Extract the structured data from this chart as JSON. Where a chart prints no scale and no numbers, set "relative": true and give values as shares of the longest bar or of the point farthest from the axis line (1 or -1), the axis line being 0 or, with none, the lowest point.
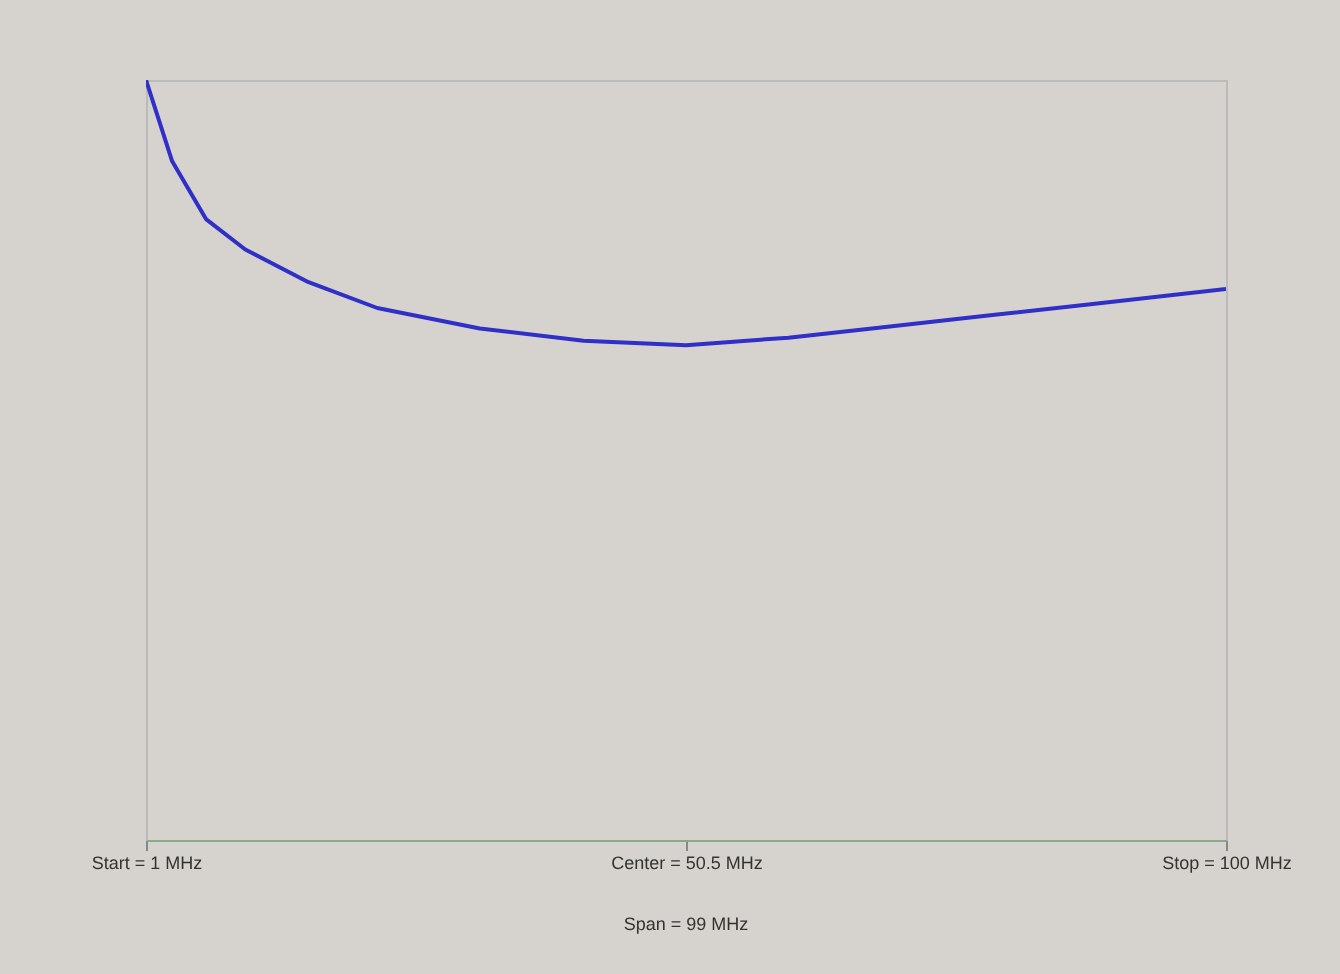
{
  "chart_data": {
    "type": "line",
    "relative": true,
    "x": [
      1,
      3.4,
      6.5,
      10.1,
      15.9,
      22.2,
      31.6,
      41.1,
      50.5,
      59.9,
      69.4,
      78.8,
      88.2,
      100
    ],
    "series": [
      {
        "color": "#3030c8",
        "values": [
          1,
          0.893,
          0.817,
          0.777,
          0.734,
          0.7,
          0.673,
          0.657,
          0.651,
          0.661,
          0.676,
          0.691,
          0.706,
          0.725
        ]
      }
    ],
    "xlim": [
      1,
      100
    ],
    "xticks": [
      {
        "value": 1,
        "label": "Start = 1 MHz"
      },
      {
        "value": 50.5,
        "label": "Center = 50.5 MHz"
      },
      {
        "value": 100,
        "label": "Stop = 100 MHz"
      }
    ],
    "annotations": [
      "Span = 99 MHz"
    ],
    "grid": false
  }
}
